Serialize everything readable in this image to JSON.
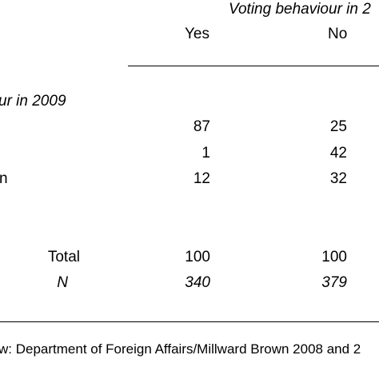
{
  "header": {
    "spanner": "Voting behaviour in 2",
    "col_yes": "Yes",
    "col_no": "No"
  },
  "group_label": "ur in 2009",
  "rows": [
    {
      "label": "",
      "yes": "87",
      "no": "25"
    },
    {
      "label": "",
      "yes": "1",
      "no": "42"
    },
    {
      "label": "n",
      "yes": "12",
      "no": "32"
    }
  ],
  "total": {
    "label": "Total",
    "yes": "100",
    "no": "100"
  },
  "n": {
    "label": "N",
    "yes": "340",
    "no": "379"
  },
  "source": "w:  Department of Foreign Affairs/Millward Brown 2008 and 2"
}
